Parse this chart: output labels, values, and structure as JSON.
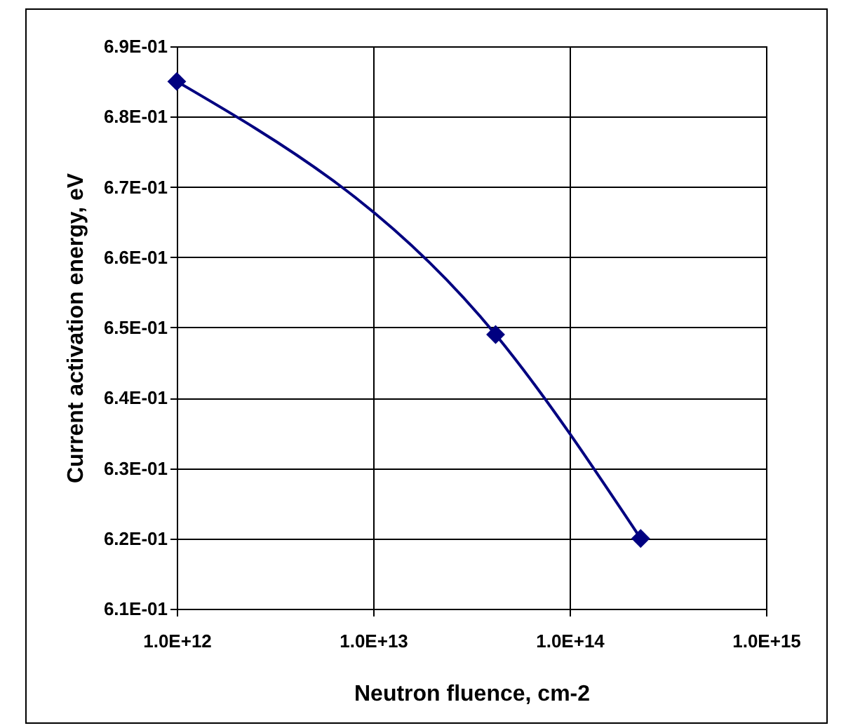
{
  "chart_data": {
    "type": "line",
    "xlabel": "Neutron fluence, cm-2",
    "ylabel": "Current activation energy, eV",
    "x": [
      1000000000000.0,
      42000000000000.0,
      230000000000000.0
    ],
    "series": [
      {
        "color": "#000080",
        "values": [
          0.685,
          0.649,
          0.62
        ]
      }
    ],
    "log": "x",
    "xlim": [
      1000000000000.0,
      1000000000000000.0
    ],
    "xticks": [
      {
        "value": 1000000000000.0,
        "label": "1.0E+12"
      },
      {
        "value": 10000000000000.0,
        "label": "1.0E+13"
      },
      {
        "value": 100000000000000.0,
        "label": "1.0E+14"
      },
      {
        "value": 1000000000000000.0,
        "label": "1.0E+15"
      }
    ],
    "ylim": [
      0.61,
      0.69
    ],
    "yticks": [
      {
        "value": 0.61,
        "label": "6.1E-01"
      },
      {
        "value": 0.62,
        "label": "6.2E-01"
      },
      {
        "value": 0.63,
        "label": "6.3E-01"
      },
      {
        "value": 0.64,
        "label": "6.4E-01"
      },
      {
        "value": 0.65,
        "label": "6.5E-01"
      },
      {
        "value": 0.66,
        "label": "6.6E-01"
      },
      {
        "value": 0.67,
        "label": "6.7E-01"
      },
      {
        "value": 0.68,
        "label": "6.8E-01"
      },
      {
        "value": 0.69,
        "label": "6.9E-01"
      }
    ],
    "grid": true,
    "marker": "diamond",
    "line_style": "solid"
  }
}
